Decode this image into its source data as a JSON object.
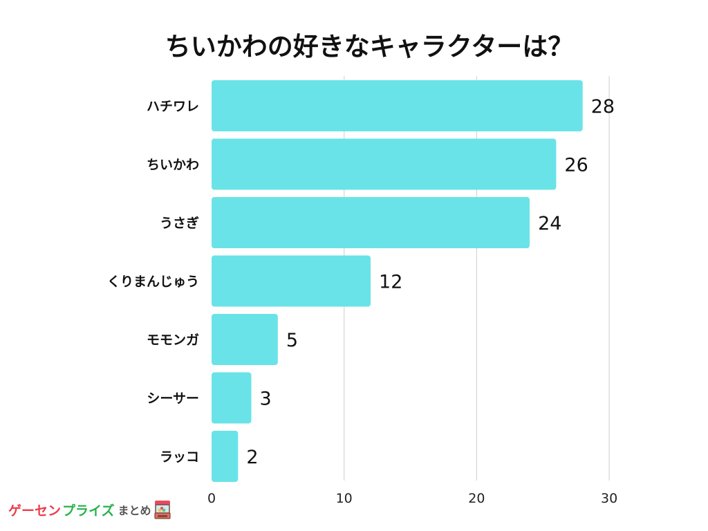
{
  "chart_data": {
    "type": "bar",
    "orientation": "horizontal",
    "title": "ちいかわの好きなキャラクターは？",
    "categories": [
      "ハチワレ",
      "ちいかわ",
      "うさぎ",
      "くりまんじゅう",
      "モモンガ",
      "シーサー",
      "ラッコ"
    ],
    "values": [
      28,
      26,
      24,
      12,
      5,
      3,
      2
    ],
    "xticks": [
      0,
      10,
      20,
      30
    ],
    "xlim": [
      0,
      30
    ],
    "grid": true,
    "bar_color": "#6ae3e8",
    "grid_color": "#d6d6d6"
  },
  "logo": {
    "part1": "ゲーセン",
    "part2": "プライズ",
    "part3": "まとめ",
    "icon": "claw-machine-icon"
  }
}
